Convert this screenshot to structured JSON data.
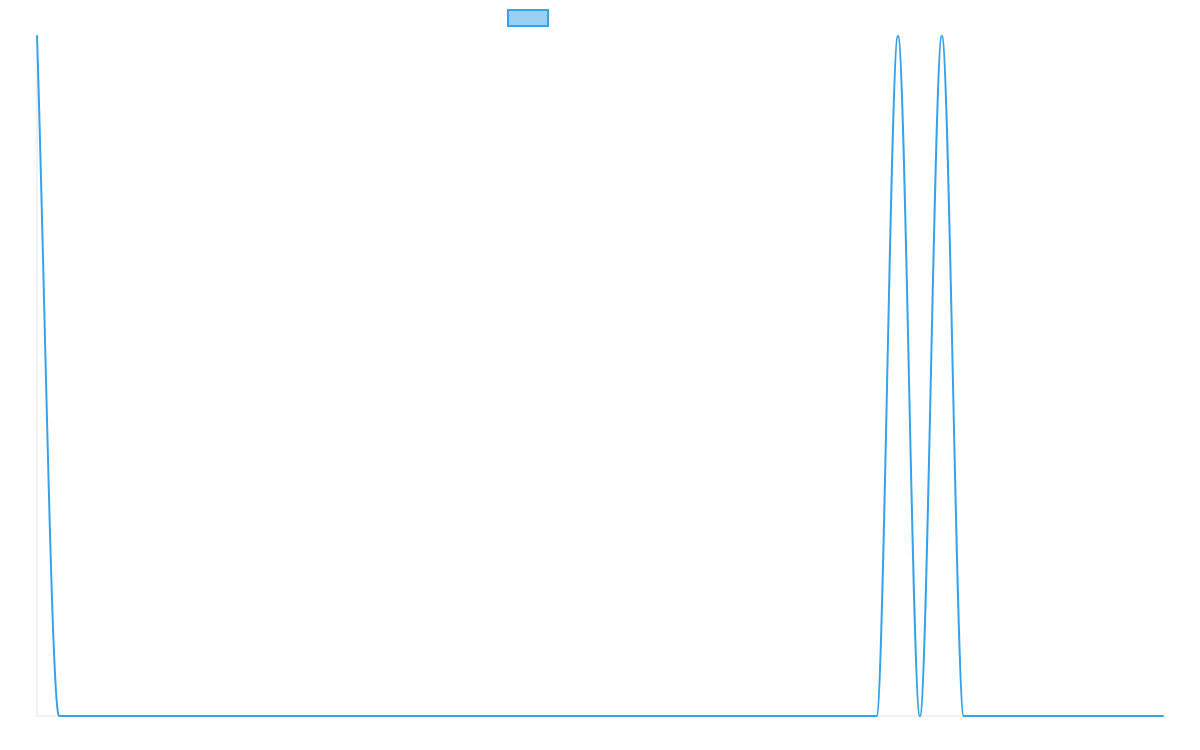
{
  "chart_data": {
    "type": "line",
    "title": "",
    "xlabel": "",
    "ylabel": "",
    "grid": false,
    "legend": {
      "position": "top-center",
      "entries": [
        {
          "label": "",
          "stroke": "#36a2eb",
          "fill": "#9ad0f5"
        }
      ]
    },
    "xlim": [
      0,
      1
    ],
    "ylim": [
      0,
      1
    ],
    "series": [
      {
        "color": "#36a2eb",
        "x": [
          0,
          0.0196,
          0.7456,
          0.7646,
          0.7841,
          0.8036,
          0.8231,
          1
        ],
        "y": [
          1,
          0,
          0,
          1,
          0,
          1,
          0,
          0
        ],
        "smooth": true
      }
    ]
  }
}
